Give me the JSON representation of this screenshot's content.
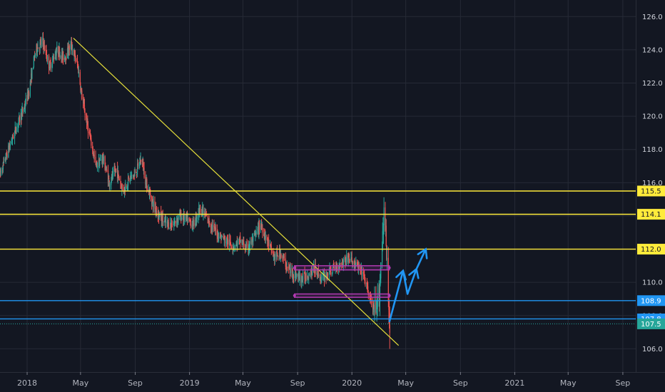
{
  "colors": {
    "background": "#131722",
    "grid": "#262a36",
    "up": "#26a69a",
    "down": "#ef5350",
    "trendline": "#e6e03a",
    "support_band": "#b23ab2",
    "forecast_arrow": "#2196f3",
    "level_yellow": "#ffeb3b",
    "level_blue": "#2196f3",
    "last_price": "#26a69a"
  },
  "chart_data": {
    "type": "candlestick",
    "title": "",
    "xlabel": "",
    "ylabel": "",
    "ylim": [
      104.6,
      127.0
    ],
    "xlim": [
      "2017-11-01",
      "2021-09-30"
    ],
    "grid": true,
    "y_ticks": [
      "106.0",
      "108.0",
      "110.0",
      "112.0",
      "114.0",
      "116.0",
      "118.0",
      "120.0",
      "122.0",
      "124.0",
      "126.0"
    ],
    "x_ticks": [
      {
        "label": "2018",
        "date": "2018-01-01"
      },
      {
        "label": "May",
        "date": "2018-05-01"
      },
      {
        "label": "Sep",
        "date": "2018-09-01"
      },
      {
        "label": "2019",
        "date": "2019-01-01"
      },
      {
        "label": "May",
        "date": "2019-05-01"
      },
      {
        "label": "Sep",
        "date": "2019-09-01"
      },
      {
        "label": "2020",
        "date": "2020-01-01"
      },
      {
        "label": "May",
        "date": "2020-05-01"
      },
      {
        "label": "Sep",
        "date": "2020-09-01"
      },
      {
        "label": "2021",
        "date": "2021-01-01"
      },
      {
        "label": "May",
        "date": "2021-05-01"
      },
      {
        "label": "Sep",
        "date": "2021-09-01"
      }
    ],
    "price_path": [
      [
        "2017-11-01",
        116.5
      ],
      [
        "2017-11-20",
        118.0
      ],
      [
        "2017-12-10",
        119.5
      ],
      [
        "2017-12-25",
        120.5
      ],
      [
        "2018-01-05",
        121.5
      ],
      [
        "2018-01-20",
        124.0
      ],
      [
        "2018-02-05",
        124.5
      ],
      [
        "2018-02-20",
        123.0
      ],
      [
        "2018-03-10",
        124.0
      ],
      [
        "2018-03-25",
        123.5
      ],
      [
        "2018-04-10",
        124.3
      ],
      [
        "2018-04-25",
        123.0
      ],
      [
        "2018-05-05",
        121.0
      ],
      [
        "2018-05-20",
        119.0
      ],
      [
        "2018-06-05",
        117.0
      ],
      [
        "2018-06-20",
        117.5
      ],
      [
        "2018-07-05",
        116.0
      ],
      [
        "2018-07-20",
        116.8
      ],
      [
        "2018-08-05",
        115.5
      ],
      [
        "2018-08-20",
        116.3
      ],
      [
        "2018-09-01",
        116.5
      ],
      [
        "2018-09-15",
        117.5
      ],
      [
        "2018-09-25",
        116.0
      ],
      [
        "2018-10-10",
        114.8
      ],
      [
        "2018-10-25",
        114.0
      ],
      [
        "2018-11-10",
        113.5
      ],
      [
        "2018-11-25",
        113.5
      ],
      [
        "2018-12-10",
        114.0
      ],
      [
        "2018-12-25",
        113.8
      ],
      [
        "2019-01-10",
        113.5
      ],
      [
        "2019-01-25",
        114.5
      ],
      [
        "2019-02-10",
        113.8
      ],
      [
        "2019-02-25",
        113.2
      ],
      [
        "2019-03-10",
        112.8
      ],
      [
        "2019-03-25",
        112.5
      ],
      [
        "2019-04-10",
        112.2
      ],
      [
        "2019-04-25",
        112.5
      ],
      [
        "2019-05-10",
        112.0
      ],
      [
        "2019-05-25",
        112.6
      ],
      [
        "2019-06-10",
        113.5
      ],
      [
        "2019-06-25",
        112.5
      ],
      [
        "2019-07-10",
        111.5
      ],
      [
        "2019-07-25",
        111.8
      ],
      [
        "2019-08-10",
        110.8
      ],
      [
        "2019-08-25",
        110.5
      ],
      [
        "2019-09-10",
        110.2
      ],
      [
        "2019-09-25",
        110.5
      ],
      [
        "2019-10-10",
        110.8
      ],
      [
        "2019-10-25",
        110.2
      ],
      [
        "2019-11-10",
        110.6
      ],
      [
        "2019-11-25",
        110.9
      ],
      [
        "2019-12-10",
        111.2
      ],
      [
        "2019-12-25",
        111.5
      ],
      [
        "2020-01-10",
        111.0
      ],
      [
        "2020-01-25",
        110.6
      ],
      [
        "2020-02-05",
        109.6
      ],
      [
        "2020-02-15",
        108.6
      ],
      [
        "2020-02-25",
        108.0
      ],
      [
        "2020-03-03",
        109.5
      ],
      [
        "2020-03-08",
        112.0
      ],
      [
        "2020-03-13",
        114.5
      ],
      [
        "2020-03-17",
        112.8
      ],
      [
        "2020-03-22",
        109.5
      ],
      [
        "2020-03-26",
        107.5
      ]
    ],
    "horizontal_levels": [
      {
        "value": 115.5,
        "label": "115.5",
        "color": "level_yellow"
      },
      {
        "value": 114.1,
        "label": "114.1",
        "color": "level_yellow"
      },
      {
        "value": 112.0,
        "label": "112.0",
        "color": "level_yellow"
      },
      {
        "value": 108.9,
        "label": "108.9",
        "color": "level_blue"
      },
      {
        "value": 107.8,
        "label": "107.8",
        "color": "level_blue"
      }
    ],
    "last_price": {
      "value": 107.5,
      "label": "107.5"
    },
    "trendline": {
      "from": {
        "date": "2018-04-15",
        "value": 124.7
      },
      "to": {
        "date": "2020-04-15",
        "value": 106.2
      }
    },
    "support_bands": [
      {
        "from": "2019-08-25",
        "to": "2020-03-25",
        "low": 110.75,
        "high": 111.0
      },
      {
        "from": "2019-08-25",
        "to": "2020-03-25",
        "low": 109.1,
        "high": 109.3
      }
    ],
    "forecast_path": [
      [
        "2020-03-25",
        107.6
      ],
      [
        "2020-04-25",
        110.7
      ],
      [
        "2020-05-05",
        109.3
      ],
      [
        "2020-05-25",
        110.8
      ],
      [
        "2020-06-15",
        112.0
      ]
    ]
  }
}
